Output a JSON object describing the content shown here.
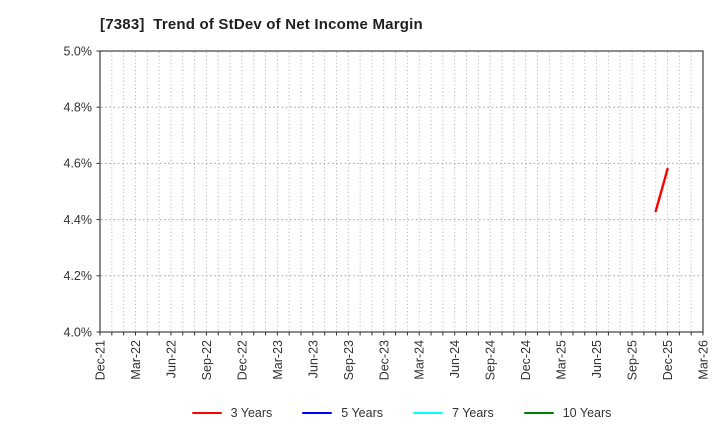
{
  "chart_data": {
    "type": "line",
    "title": "[7383]  Trend of StDev of Net Income Margin",
    "x_axis": {
      "tick_labels": [
        "Dec-21",
        "Mar-22",
        "Jun-22",
        "Sep-22",
        "Dec-22",
        "Mar-23",
        "Jun-23",
        "Sep-23",
        "Dec-23",
        "Mar-24",
        "Jun-24",
        "Sep-24",
        "Dec-24",
        "Mar-25",
        "Jun-25",
        "Sep-25",
        "Dec-25",
        "Mar-26"
      ],
      "months_between_labeled_ticks": 3,
      "total_months": 51,
      "label_rotation_deg": -90
    },
    "y_axis": {
      "min": 4.0,
      "max": 5.0,
      "step": 0.2,
      "tick_labels": [
        "4.0%",
        "4.2%",
        "4.4%",
        "4.6%",
        "4.8%",
        "5.0%"
      ],
      "unit": "%"
    },
    "grid": {
      "vertical": "monthly",
      "horizontal": "at-each-y-tick",
      "style": "dotted",
      "color": "#b0b0b0"
    },
    "series": [
      {
        "name": "3 Years",
        "color": "#ff0000",
        "points": [
          {
            "month_label": "Nov-25",
            "month_index": 47,
            "value": 4.43
          },
          {
            "month_label": "Dec-25",
            "month_index": 48,
            "value": 4.58
          }
        ]
      },
      {
        "name": "5 Years",
        "color": "#0000ff",
        "points": []
      },
      {
        "name": "7 Years",
        "color": "#00ffff",
        "points": []
      },
      {
        "name": "10 Years",
        "color": "#008000",
        "points": []
      }
    ],
    "legend_position": "bottom-center"
  }
}
